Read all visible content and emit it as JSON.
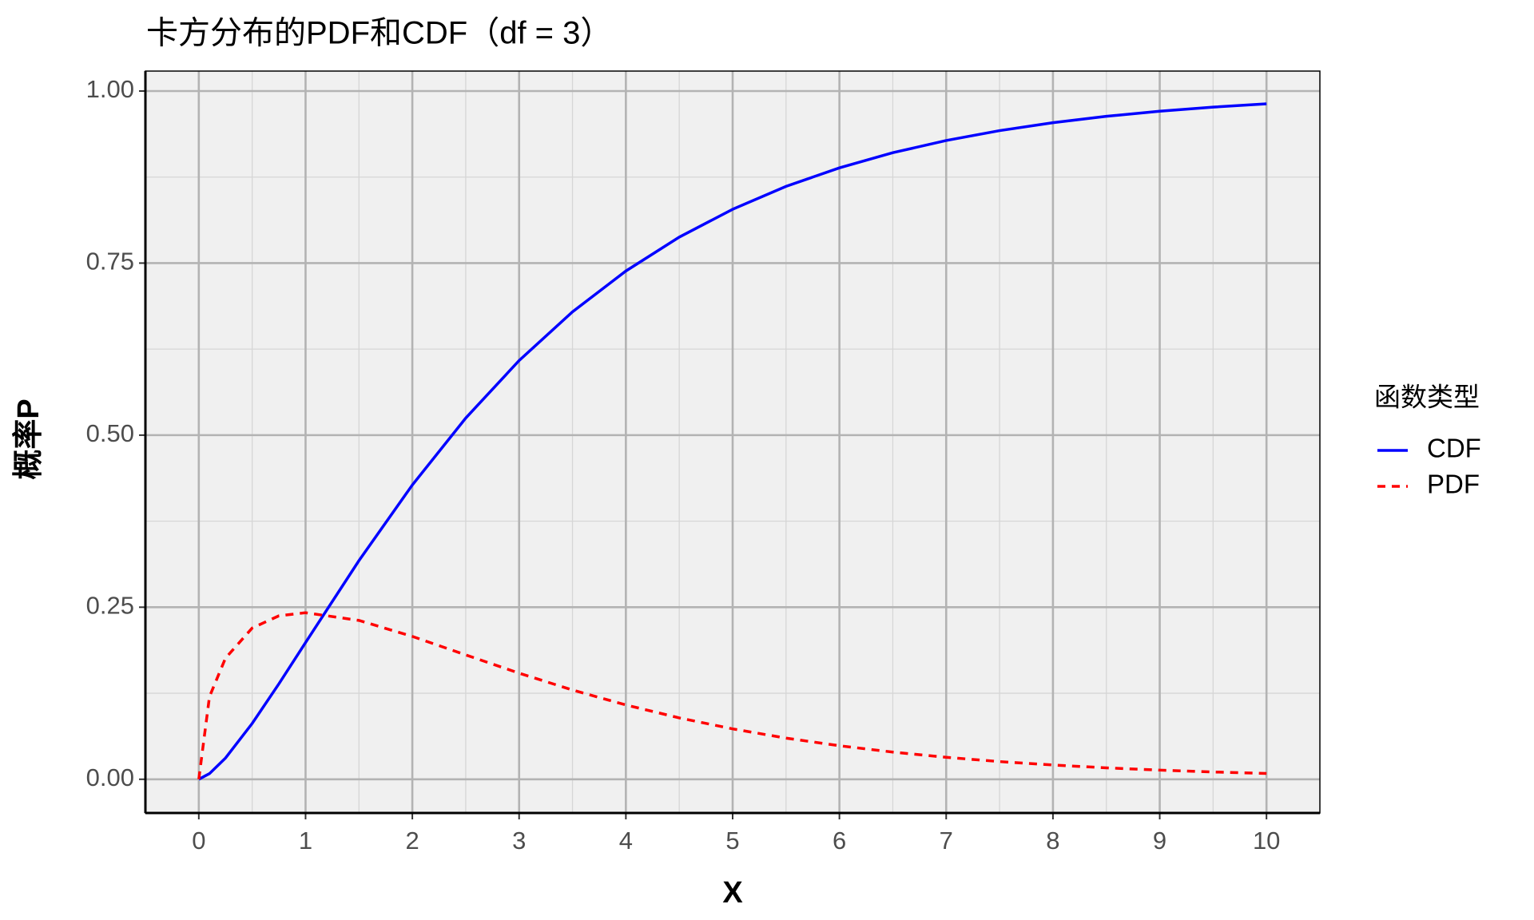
{
  "chart_data": {
    "type": "line",
    "title": "卡方分布的PDF和CDF（df = 3）",
    "x_label": "X",
    "y_label": "概率P",
    "x": [
      0,
      0.1,
      0.25,
      0.5,
      0.75,
      1,
      1.5,
      2,
      2.5,
      3,
      3.5,
      4,
      4.5,
      5,
      5.5,
      6,
      6.5,
      7,
      7.5,
      8,
      8.5,
      9,
      9.5,
      10
    ],
    "series": [
      {
        "name": "CDF",
        "color": "#0000ff",
        "linestyle": "solid",
        "values": [
          0,
          0.0082,
          0.0308,
          0.0811,
          0.1386,
          0.1987,
          0.3177,
          0.4276,
          0.5248,
          0.6084,
          0.6792,
          0.7385,
          0.7877,
          0.8282,
          0.8615,
          0.8884,
          0.9104,
          0.9281,
          0.9425,
          0.954,
          0.9633,
          0.9707,
          0.9766,
          0.9814
        ]
      },
      {
        "name": "PDF",
        "color": "#ff0000",
        "linestyle": "dashed",
        "values": [
          0,
          0.12,
          0.176,
          0.2197,
          0.2375,
          0.242,
          0.2308,
          0.2076,
          0.1807,
          0.1542,
          0.1297,
          0.108,
          0.0892,
          0.0732,
          0.0598,
          0.0487,
          0.0395,
          0.0319,
          0.0257,
          0.0207,
          0.0166,
          0.0133,
          0.0106,
          0.0085
        ]
      }
    ],
    "xlim": [
      -0.5,
      10.5
    ],
    "ylim": [
      -0.049,
      1.029
    ],
    "xticks": [
      0,
      1,
      2,
      3,
      4,
      5,
      6,
      7,
      8,
      9,
      10
    ],
    "yticks": [
      {
        "value": 0,
        "label": "0.00"
      },
      {
        "value": 0.25,
        "label": "0.25"
      },
      {
        "value": 0.5,
        "label": "0.50"
      },
      {
        "value": 0.75,
        "label": "0.75"
      },
      {
        "value": 1,
        "label": "1.00"
      }
    ],
    "grid": true,
    "legend": {
      "title": "函数类型",
      "position": "right"
    }
  }
}
